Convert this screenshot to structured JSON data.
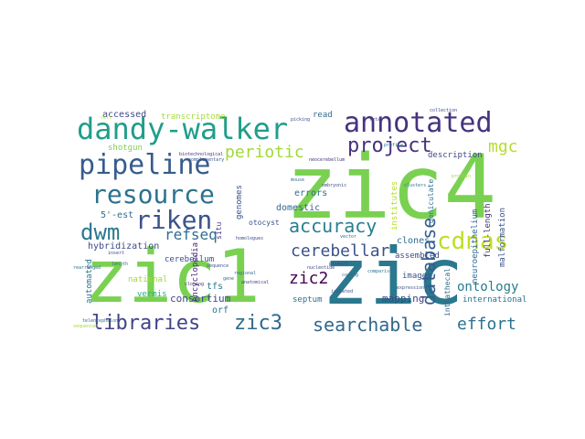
{
  "wordcloud": {
    "large_words": [
      {
        "text": "zic4",
        "color": "#7ad151"
      },
      {
        "text": "zic1",
        "color": "#7ad151"
      },
      {
        "text": "zic",
        "color": "#2a788e"
      },
      {
        "text": "dandy-walker",
        "color": "#1f9e89"
      },
      {
        "text": "annotated",
        "color": "#46337e"
      },
      {
        "text": "pipeline",
        "color": "#365c8d"
      },
      {
        "text": "resource",
        "color": "#2c728e"
      },
      {
        "text": "riken",
        "color": "#3b528b"
      },
      {
        "text": "cdnas",
        "color": "#bddf26"
      },
      {
        "text": "project",
        "color": "#46327e"
      },
      {
        "text": "dwm",
        "color": "#2a788e"
      },
      {
        "text": "accuracy",
        "color": "#277f8e"
      },
      {
        "text": "periotic",
        "color": "#a0da39"
      },
      {
        "text": "mgc",
        "color": "#b5de2b"
      },
      {
        "text": "libraries",
        "color": "#414487"
      },
      {
        "text": "zic3",
        "color": "#306a8e"
      },
      {
        "text": "searchable",
        "color": "#31688e"
      },
      {
        "text": "database",
        "color": "#365c8d"
      },
      {
        "text": "effort",
        "color": "#2c728e"
      },
      {
        "text": "zic2",
        "color": "#440154"
      },
      {
        "text": "cerebellar",
        "color": "#3b528b"
      },
      {
        "text": "refseq",
        "color": "#2e6e8e"
      },
      {
        "text": "ontology",
        "color": "#287c8e"
      },
      {
        "text": "consortium",
        "color": "#3e4989"
      },
      {
        "text": "mapping",
        "color": "#414487"
      }
    ],
    "medium_words": [
      {
        "text": "accessed",
        "color": "#3e4989"
      },
      {
        "text": "transcriptome",
        "color": "#a5db36"
      },
      {
        "text": "shotgun",
        "color": "#7ad151"
      },
      {
        "text": "genomes",
        "color": "#3b528b"
      },
      {
        "text": "5'-est",
        "color": "#2e6e8e"
      },
      {
        "text": "hybridization",
        "color": "#3e4989"
      },
      {
        "text": "cerebellum",
        "color": "#3e4989"
      },
      {
        "text": "automated",
        "color": "#2a788e"
      },
      {
        "text": "national",
        "color": "#a0da39"
      },
      {
        "text": "vermis",
        "color": "#27ad81"
      },
      {
        "text": "encyclopedia",
        "color": "#482878"
      },
      {
        "text": "tfs",
        "color": "#2a788e"
      },
      {
        "text": "orf",
        "color": "#2c728e"
      },
      {
        "text": "situ",
        "color": "#443983"
      },
      {
        "text": "domestic",
        "color": "#31688e"
      },
      {
        "text": "errors",
        "color": "#2e6e8e"
      },
      {
        "text": "institutes",
        "color": "#b5de2b"
      },
      {
        "text": "clones",
        "color": "#2e6e8e"
      },
      {
        "text": "assembled",
        "color": "#3e4989"
      },
      {
        "text": "geniculate",
        "color": "#2c728e"
      },
      {
        "text": "intrathecal",
        "color": "#31688e"
      },
      {
        "text": "septum",
        "color": "#2e6e8e"
      },
      {
        "text": "images",
        "color": "#3b528b"
      },
      {
        "text": "international",
        "color": "#2c728e"
      },
      {
        "text": "full-length",
        "color": "#46327e"
      },
      {
        "text": "neuroepithelium",
        "color": "#31688e"
      },
      {
        "text": "malformation",
        "color": "#3b528b"
      },
      {
        "text": "description",
        "color": "#3e4989"
      },
      {
        "text": "read",
        "color": "#2e6e8e"
      },
      {
        "text": "otocyst",
        "color": "#3b528b"
      }
    ],
    "small_words": [
      {
        "text": "picking",
        "color": "#3b528b"
      },
      {
        "text": "collection",
        "color": "#3e4989"
      },
      {
        "text": "rearranged",
        "color": "#2c728e"
      },
      {
        "text": "sequenced",
        "color": "#a0da39"
      },
      {
        "text": "neocerebellum",
        "color": "#46327e"
      },
      {
        "text": "primers",
        "color": "#3e4989"
      },
      {
        "text": "comparison",
        "color": "#2c728e"
      },
      {
        "text": "isolated",
        "color": "#3b528b"
      },
      {
        "text": "clusters",
        "color": "#2e6e8e"
      },
      {
        "text": "homologues",
        "color": "#3e4989"
      },
      {
        "text": "telencephalon",
        "color": "#2c728e"
      },
      {
        "text": "cell",
        "color": "#b5de2b"
      },
      {
        "text": "complementary",
        "color": "#3b528b"
      },
      {
        "text": "regional",
        "color": "#2e6e8e"
      },
      {
        "text": "biotechnological",
        "color": "#46327e"
      },
      {
        "text": "anatomical",
        "color": "#3e4989"
      },
      {
        "text": "gene",
        "color": "#2c728e"
      },
      {
        "text": "expression",
        "color": "#3b528b"
      },
      {
        "text": "profile",
        "color": "#2e6e8e"
      },
      {
        "text": "nucleotide",
        "color": "#3e4989"
      },
      {
        "text": "protein",
        "color": "#a0da39"
      },
      {
        "text": "mouse",
        "color": "#2c728e"
      },
      {
        "text": "embryonic",
        "color": "#3b528b"
      },
      {
        "text": "fetal",
        "color": "#3e4989"
      },
      {
        "text": "coding",
        "color": "#2e6e8e"
      },
      {
        "text": "cloning",
        "color": "#46327e"
      },
      {
        "text": "sequence",
        "color": "#3b528b"
      },
      {
        "text": "vector",
        "color": "#2c728e"
      },
      {
        "text": "insert",
        "color": "#3e4989"
      },
      {
        "text": "length",
        "color": "#2e6e8e"
      }
    ]
  }
}
